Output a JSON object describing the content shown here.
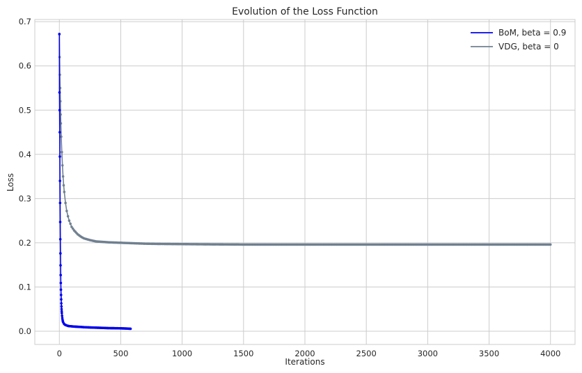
{
  "chart_data": {
    "type": "scatter",
    "title": "Evolution of the Loss Function",
    "xlabel": "Iterations",
    "ylabel": "Loss",
    "xlim": [
      -200,
      4200
    ],
    "ylim": [
      -0.03,
      0.705
    ],
    "xticks": [
      0,
      500,
      1000,
      1500,
      2000,
      2500,
      3000,
      3500,
      4000
    ],
    "yticks": [
      0.0,
      0.1,
      0.2,
      0.3,
      0.4,
      0.5,
      0.6,
      0.7
    ],
    "xtick_labels": [
      "0",
      "500",
      "1000",
      "1500",
      "2000",
      "2500",
      "3000",
      "3500",
      "4000"
    ],
    "ytick_labels": [
      "0.0",
      "0.1",
      "0.2",
      "0.3",
      "0.4",
      "0.5",
      "0.6",
      "0.7"
    ],
    "grid": true,
    "legend_position": "top-right",
    "series": [
      {
        "name": "BoM, beta = 0.9",
        "color": "#0000ee",
        "x": [
          0,
          1,
          2,
          3,
          4,
          5,
          6,
          7,
          8,
          9,
          10,
          11,
          12,
          13,
          14,
          15,
          16,
          17,
          18,
          19,
          20,
          22,
          24,
          26,
          28,
          30,
          35,
          40,
          45,
          50,
          60,
          70,
          80,
          100,
          120,
          150,
          180,
          200,
          250,
          300,
          350,
          400,
          450,
          500,
          550,
          580
        ],
        "y": [
          0.672,
          0.54,
          0.5,
          0.45,
          0.395,
          0.34,
          0.29,
          0.247,
          0.208,
          0.176,
          0.149,
          0.127,
          0.109,
          0.094,
          0.082,
          0.072,
          0.063,
          0.056,
          0.05,
          0.045,
          0.041,
          0.035,
          0.03,
          0.026,
          0.023,
          0.021,
          0.018,
          0.016,
          0.015,
          0.014,
          0.013,
          0.012,
          0.0115,
          0.011,
          0.0105,
          0.01,
          0.0095,
          0.009,
          0.0085,
          0.008,
          0.0075,
          0.007,
          0.0068,
          0.0065,
          0.006,
          0.0055
        ]
      },
      {
        "name": "VDG, beta = 0",
        "color": "#708090",
        "x": [
          0,
          2,
          4,
          6,
          8,
          10,
          12,
          15,
          20,
          25,
          30,
          35,
          40,
          50,
          60,
          70,
          80,
          100,
          120,
          150,
          180,
          200,
          250,
          300,
          350,
          400,
          500,
          600,
          700,
          800,
          1000,
          1200,
          1500,
          2000,
          2500,
          3000,
          3500,
          4000
        ],
        "y": [
          0.672,
          0.62,
          0.58,
          0.55,
          0.52,
          0.49,
          0.47,
          0.44,
          0.405,
          0.375,
          0.35,
          0.33,
          0.315,
          0.29,
          0.272,
          0.26,
          0.25,
          0.236,
          0.228,
          0.219,
          0.213,
          0.21,
          0.206,
          0.203,
          0.202,
          0.201,
          0.2,
          0.199,
          0.198,
          0.1975,
          0.197,
          0.1965,
          0.196,
          0.196,
          0.196,
          0.196,
          0.196,
          0.196
        ]
      }
    ]
  }
}
